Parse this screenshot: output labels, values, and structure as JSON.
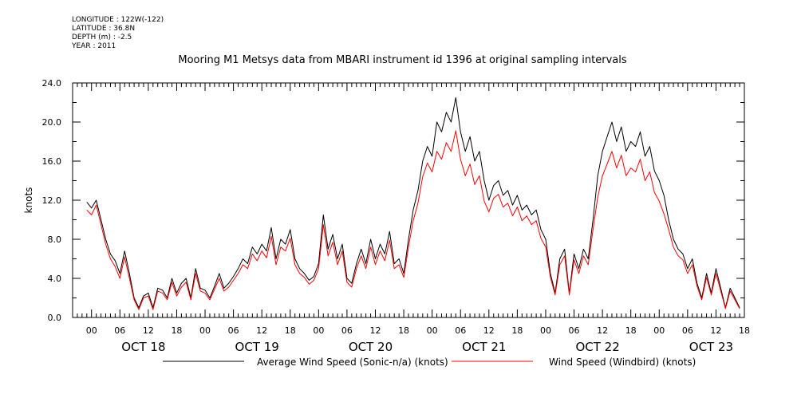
{
  "metadata": {
    "longitude": "LONGITUDE : 122W(-122)",
    "latitude": "LATITUDE : 36.8N",
    "depth": "DEPTH (m) : -2.5",
    "year": "YEAR : 2011"
  },
  "chart_data": {
    "type": "line",
    "title": "Mooring M1 Metsys data from MBARI instrument id 1396 at original sampling intervals",
    "xlabel": "",
    "ylabel": "knots",
    "x_unit": "hours since OCT 18 00:00 (2011)",
    "xlim": [
      -4,
      138
    ],
    "ylim": [
      0,
      24
    ],
    "y_ticks": [
      "0.0",
      "4.0",
      "8.0",
      "12.0",
      "16.0",
      "20.0",
      "24.0"
    ],
    "hour_tick_labels": [
      "00",
      "06",
      "12",
      "18"
    ],
    "day_labels": [
      "OCT 18",
      "OCT 19",
      "OCT 20",
      "OCT 21",
      "OCT 22",
      "OCT 23"
    ],
    "grid": false,
    "legend_position": "bottom",
    "series": [
      {
        "name": "Average Wind Speed (Sonic-n/a) (knots)",
        "color": "#000000",
        "points": [
          [
            -1,
            11.8
          ],
          [
            0,
            11.2
          ],
          [
            1,
            12.0
          ],
          [
            2,
            10.0
          ],
          [
            3,
            8.0
          ],
          [
            4,
            6.5
          ],
          [
            5,
            5.8
          ],
          [
            6,
            4.5
          ],
          [
            7,
            6.8
          ],
          [
            8,
            4.5
          ],
          [
            9,
            2.0
          ],
          [
            10,
            1.0
          ],
          [
            11,
            2.2
          ],
          [
            12,
            2.5
          ],
          [
            13,
            1.0
          ],
          [
            14,
            3.0
          ],
          [
            15,
            2.8
          ],
          [
            16,
            2.0
          ],
          [
            17,
            4.0
          ],
          [
            18,
            2.5
          ],
          [
            19,
            3.5
          ],
          [
            20,
            4.0
          ],
          [
            21,
            2.0
          ],
          [
            22,
            5.0
          ],
          [
            23,
            3.0
          ],
          [
            24,
            2.8
          ],
          [
            25,
            2.0
          ],
          [
            26,
            3.2
          ],
          [
            27,
            4.5
          ],
          [
            28,
            3.0
          ],
          [
            29,
            3.5
          ],
          [
            30,
            4.2
          ],
          [
            31,
            5.0
          ],
          [
            32,
            6.0
          ],
          [
            33,
            5.5
          ],
          [
            34,
            7.2
          ],
          [
            35,
            6.5
          ],
          [
            36,
            7.5
          ],
          [
            37,
            6.8
          ],
          [
            38,
            9.2
          ],
          [
            39,
            6.0
          ],
          [
            40,
            8.0
          ],
          [
            41,
            7.5
          ],
          [
            42,
            9.0
          ],
          [
            43,
            6.0
          ],
          [
            44,
            5.0
          ],
          [
            45,
            4.5
          ],
          [
            46,
            3.8
          ],
          [
            47,
            4.2
          ],
          [
            48,
            5.5
          ],
          [
            49,
            10.5
          ],
          [
            50,
            7.0
          ],
          [
            51,
            8.5
          ],
          [
            52,
            6.0
          ],
          [
            53,
            7.5
          ],
          [
            54,
            4.0
          ],
          [
            55,
            3.5
          ],
          [
            56,
            5.5
          ],
          [
            57,
            7.0
          ],
          [
            58,
            5.5
          ],
          [
            59,
            8.0
          ],
          [
            60,
            6.0
          ],
          [
            61,
            7.5
          ],
          [
            62,
            6.5
          ],
          [
            63,
            8.8
          ],
          [
            64,
            5.5
          ],
          [
            65,
            6.0
          ],
          [
            66,
            4.5
          ],
          [
            67,
            8.0
          ],
          [
            68,
            11.0
          ],
          [
            69,
            13.0
          ],
          [
            70,
            16.0
          ],
          [
            71,
            17.5
          ],
          [
            72,
            16.5
          ],
          [
            73,
            20.0
          ],
          [
            74,
            19.0
          ],
          [
            75,
            21.0
          ],
          [
            76,
            20.0
          ],
          [
            77,
            22.5
          ],
          [
            78,
            19.0
          ],
          [
            79,
            17.0
          ],
          [
            80,
            18.5
          ],
          [
            81,
            16.0
          ],
          [
            82,
            17.0
          ],
          [
            83,
            14.0
          ],
          [
            84,
            12.0
          ],
          [
            85,
            13.5
          ],
          [
            86,
            14.0
          ],
          [
            87,
            12.5
          ],
          [
            88,
            13.0
          ],
          [
            89,
            11.5
          ],
          [
            90,
            12.5
          ],
          [
            91,
            11.0
          ],
          [
            92,
            11.5
          ],
          [
            93,
            10.5
          ],
          [
            94,
            11.0
          ],
          [
            95,
            9.0
          ],
          [
            96,
            8.0
          ],
          [
            97,
            4.5
          ],
          [
            98,
            2.5
          ],
          [
            99,
            6.0
          ],
          [
            100,
            7.0
          ],
          [
            101,
            2.5
          ],
          [
            102,
            6.5
          ],
          [
            103,
            5.0
          ],
          [
            104,
            7.0
          ],
          [
            105,
            6.0
          ],
          [
            106,
            10.0
          ],
          [
            107,
            14.5
          ],
          [
            108,
            17.0
          ],
          [
            109,
            18.5
          ],
          [
            110,
            20.0
          ],
          [
            111,
            18.0
          ],
          [
            112,
            19.5
          ],
          [
            113,
            17.0
          ],
          [
            114,
            18.0
          ],
          [
            115,
            17.5
          ],
          [
            116,
            19.0
          ],
          [
            117,
            16.5
          ],
          [
            118,
            17.5
          ],
          [
            119,
            15.0
          ],
          [
            120,
            14.0
          ],
          [
            121,
            12.5
          ],
          [
            122,
            10.0
          ],
          [
            123,
            8.0
          ],
          [
            124,
            7.0
          ],
          [
            125,
            6.5
          ],
          [
            126,
            5.0
          ],
          [
            127,
            6.0
          ],
          [
            128,
            3.5
          ],
          [
            129,
            2.0
          ],
          [
            130,
            4.5
          ],
          [
            131,
            2.5
          ],
          [
            132,
            5.0
          ],
          [
            133,
            3.0
          ],
          [
            134,
            1.0
          ],
          [
            135,
            3.0
          ],
          [
            136,
            2.0
          ],
          [
            137,
            1.0
          ]
        ]
      },
      {
        "name": "Wind Speed (Windbird) (knots)",
        "color": "#ff0000",
        "points": [
          [
            -1,
            11.0
          ],
          [
            0,
            10.5
          ],
          [
            1,
            11.5
          ],
          [
            2,
            9.5
          ],
          [
            3,
            7.5
          ],
          [
            4,
            6.0
          ],
          [
            5,
            5.2
          ],
          [
            6,
            4.0
          ],
          [
            7,
            6.2
          ],
          [
            8,
            4.0
          ],
          [
            9,
            1.8
          ],
          [
            10,
            0.8
          ],
          [
            11,
            2.0
          ],
          [
            12,
            2.2
          ],
          [
            13,
            0.8
          ],
          [
            14,
            2.7
          ],
          [
            15,
            2.5
          ],
          [
            16,
            1.8
          ],
          [
            17,
            3.6
          ],
          [
            18,
            2.2
          ],
          [
            19,
            3.1
          ],
          [
            20,
            3.6
          ],
          [
            21,
            1.8
          ],
          [
            22,
            4.5
          ],
          [
            23,
            2.7
          ],
          [
            24,
            2.5
          ],
          [
            25,
            1.8
          ],
          [
            26,
            2.9
          ],
          [
            27,
            4.0
          ],
          [
            28,
            2.7
          ],
          [
            29,
            3.1
          ],
          [
            30,
            3.8
          ],
          [
            31,
            4.5
          ],
          [
            32,
            5.4
          ],
          [
            33,
            5.0
          ],
          [
            34,
            6.5
          ],
          [
            35,
            5.8
          ],
          [
            36,
            6.8
          ],
          [
            37,
            6.1
          ],
          [
            38,
            8.3
          ],
          [
            39,
            5.4
          ],
          [
            40,
            7.2
          ],
          [
            41,
            6.8
          ],
          [
            42,
            8.1
          ],
          [
            43,
            5.4
          ],
          [
            44,
            4.5
          ],
          [
            45,
            4.1
          ],
          [
            46,
            3.4
          ],
          [
            47,
            3.8
          ],
          [
            48,
            5.0
          ],
          [
            49,
            9.5
          ],
          [
            50,
            6.3
          ],
          [
            51,
            7.7
          ],
          [
            52,
            5.4
          ],
          [
            53,
            6.8
          ],
          [
            54,
            3.6
          ],
          [
            55,
            3.1
          ],
          [
            56,
            5.0
          ],
          [
            57,
            6.3
          ],
          [
            58,
            5.0
          ],
          [
            59,
            7.2
          ],
          [
            60,
            5.4
          ],
          [
            61,
            6.8
          ],
          [
            62,
            5.8
          ],
          [
            63,
            7.9
          ],
          [
            64,
            5.0
          ],
          [
            65,
            5.4
          ],
          [
            66,
            4.1
          ],
          [
            67,
            7.2
          ],
          [
            68,
            9.9
          ],
          [
            69,
            11.7
          ],
          [
            70,
            14.4
          ],
          [
            71,
            15.8
          ],
          [
            72,
            14.9
          ],
          [
            73,
            17.0
          ],
          [
            74,
            16.2
          ],
          [
            75,
            17.9
          ],
          [
            76,
            17.0
          ],
          [
            77,
            19.1
          ],
          [
            78,
            16.2
          ],
          [
            79,
            14.5
          ],
          [
            80,
            15.7
          ],
          [
            81,
            13.6
          ],
          [
            82,
            14.5
          ],
          [
            83,
            11.9
          ],
          [
            84,
            10.8
          ],
          [
            85,
            12.2
          ],
          [
            86,
            12.6
          ],
          [
            87,
            11.3
          ],
          [
            88,
            11.7
          ],
          [
            89,
            10.4
          ],
          [
            90,
            11.3
          ],
          [
            91,
            9.9
          ],
          [
            92,
            10.4
          ],
          [
            93,
            9.5
          ],
          [
            94,
            9.9
          ],
          [
            95,
            8.1
          ],
          [
            96,
            7.2
          ],
          [
            97,
            4.1
          ],
          [
            98,
            2.3
          ],
          [
            99,
            5.4
          ],
          [
            100,
            6.3
          ],
          [
            101,
            2.3
          ],
          [
            102,
            5.9
          ],
          [
            103,
            4.5
          ],
          [
            104,
            6.3
          ],
          [
            105,
            5.4
          ],
          [
            106,
            9.0
          ],
          [
            107,
            12.3
          ],
          [
            108,
            14.5
          ],
          [
            109,
            15.7
          ],
          [
            110,
            17.0
          ],
          [
            111,
            15.3
          ],
          [
            112,
            16.6
          ],
          [
            113,
            14.5
          ],
          [
            114,
            15.3
          ],
          [
            115,
            14.9
          ],
          [
            116,
            16.2
          ],
          [
            117,
            14.0
          ],
          [
            118,
            14.9
          ],
          [
            119,
            12.8
          ],
          [
            120,
            11.9
          ],
          [
            121,
            10.6
          ],
          [
            122,
            9.0
          ],
          [
            123,
            7.2
          ],
          [
            124,
            6.3
          ],
          [
            125,
            5.9
          ],
          [
            126,
            4.5
          ],
          [
            127,
            5.4
          ],
          [
            128,
            3.2
          ],
          [
            129,
            1.8
          ],
          [
            130,
            4.1
          ],
          [
            131,
            2.3
          ],
          [
            132,
            4.5
          ],
          [
            133,
            2.7
          ],
          [
            134,
            0.9
          ],
          [
            135,
            2.7
          ],
          [
            136,
            1.8
          ],
          [
            137,
            0.9
          ]
        ]
      }
    ]
  }
}
